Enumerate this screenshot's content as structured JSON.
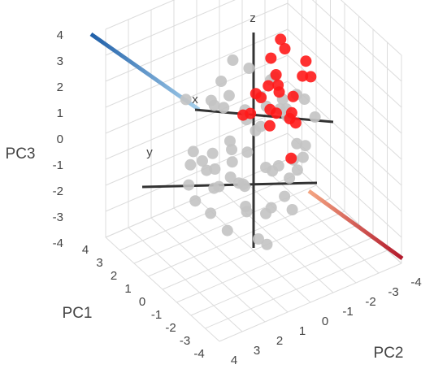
{
  "chart_data": {
    "type": "scatter3d",
    "xlabel": "PC1",
    "ylabel": "PC2",
    "zlabel": "PC3",
    "xlim": [
      -4,
      4
    ],
    "ylim": [
      -4,
      4
    ],
    "zlim": [
      -4,
      4
    ],
    "xticks": [
      -4,
      -3,
      -2,
      -1,
      0,
      1,
      2,
      3,
      4
    ],
    "yticks": [
      -4,
      -3,
      -2,
      -1,
      0,
      1,
      2,
      3,
      4
    ],
    "zticks": [
      -4,
      -3,
      -2,
      -1,
      0,
      1,
      2,
      3,
      4
    ],
    "grid": true,
    "axis_markers": [
      "x",
      "y",
      "z"
    ],
    "series": [
      {
        "color": "#c3c3c3",
        "x": [
          0.5,
          -1.2,
          1.8,
          -0.3,
          2.1,
          -2.0,
          0.9,
          -1.5,
          1.2,
          0.0,
          -0.8,
          1.6,
          -2.3,
          0.4,
          2.4,
          -1.0,
          0.7,
          -1.8,
          1.0,
          -0.5,
          2.0,
          -2.2,
          0.2,
          1.4,
          -1.3,
          0.8,
          -0.2,
          1.9,
          -1.6,
          0.6,
          -0.9,
          1.1,
          -2.4,
          0.3,
          1.7,
          -0.6,
          2.2,
          -1.1,
          0.1,
          -1.9,
          1.3,
          -0.4,
          2.5,
          -1.4,
          0.9,
          -0.7,
          1.5,
          -2.1,
          0.0,
          0.6,
          -1.7,
          1.8,
          -0.1,
          1.0,
          -1.2,
          2.3,
          -2.5,
          0.4,
          -0.3,
          1.2
        ],
        "y": [
          -0.4,
          1.1,
          0.6,
          -1.7,
          -1.0,
          1.9,
          2.0,
          -0.5,
          1.5,
          0.3,
          -2.2,
          -0.8,
          0.9,
          2.4,
          0.2,
          -1.3,
          -1.9,
          1.4,
          0.8,
          2.2,
          -2.0,
          -0.2,
          -0.9,
          1.9,
          0.5,
          -2.4,
          1.2,
          -1.5,
          -0.7,
          0.0,
          2.3,
          -0.3,
          0.4,
          -1.1,
          1.0,
          -1.8,
          1.6,
          1.7,
          -2.3,
          0.6,
          0.1,
          0.7,
          -0.6,
          -1.4,
          1.3,
          -0.1,
          -2.1,
          1.1,
          1.8,
          -1.2,
          2.0,
          0.4,
          -0.5,
          -1.9,
          -1.0,
          -0.4,
          0.2,
          0.9,
          1.5,
          2.1
        ],
        "z": [
          0.2,
          -1.3,
          0.9,
          1.5,
          -0.4,
          0.3,
          -1.8,
          2.0,
          -0.6,
          -2.4,
          0.7,
          1.9,
          -1.1,
          0.5,
          -2.0,
          -0.9,
          0.1,
          1.2,
          2.3,
          -1.5,
          0.8,
          -0.2,
          -2.8,
          -0.7,
          1.6,
          -1.2,
          2.5,
          0.4,
          -1.9,
          1.1,
          -0.3,
          -2.2,
          0.6,
          2.1,
          -1.4,
          -0.8,
          1.3,
          0.0,
          0.9,
          -2.6,
          2.7,
          -1.0,
          -1.6,
          0.2,
          1.8,
          -0.5,
          -0.1,
          -2.1,
          0.4,
          -1.7,
          1.0,
          -2.3,
          1.4,
          0.6,
          -0.3,
          -1.1,
          -0.6,
          -3.1,
          2.2,
          -1.3
        ]
      },
      {
        "color": "#ff1a1a",
        "x": [
          0.5,
          -0.3,
          1.0,
          0.2,
          -0.8,
          0.8,
          -0.5,
          0.0,
          1.2,
          -1.0,
          0.4,
          -0.2,
          0.6,
          0.9,
          -0.6,
          0.3,
          1.5,
          -0.4,
          0.1,
          0.7,
          -1.2,
          0.5
        ],
        "y": [
          -1.5,
          -0.8,
          -2.0,
          -1.2,
          -1.8,
          -0.6,
          -2.2,
          -1.0,
          -1.4,
          -0.5,
          -2.4,
          -0.2,
          -1.1,
          -2.3,
          -1.3,
          -0.9,
          -1.7,
          -1.6,
          0.4,
          -0.3,
          -0.9,
          -1.9
        ],
        "z": [
          3.3,
          2.6,
          2.5,
          1.8,
          3.0,
          1.4,
          2.1,
          0.9,
          1.2,
          2.4,
          1.6,
          1.9,
          0.7,
          0.6,
          1.1,
          0.3,
          2.0,
          0.5,
          1.3,
          0.8,
          -0.2,
          0.1
        ]
      }
    ]
  }
}
